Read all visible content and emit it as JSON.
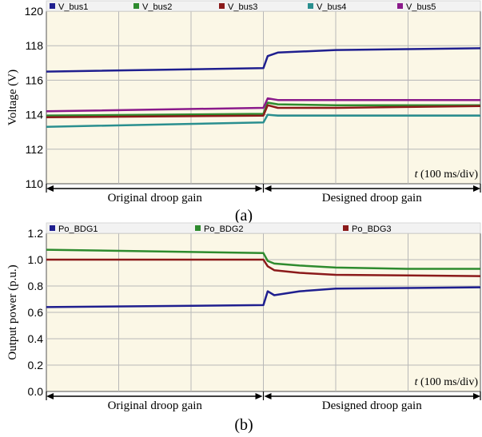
{
  "chart_data": [
    {
      "type": "line",
      "panel_label": "(a)",
      "ylabel": "Voltage (V)",
      "ylim": [
        110,
        120
      ],
      "yticks": [
        "110",
        "112",
        "114",
        "116",
        "118",
        "120"
      ],
      "x_note_prefix": "t",
      "x_note_suffix": " (100 ms/div)",
      "xlim": [
        0,
        6
      ],
      "switch_x": 3,
      "regions": [
        "Original droop gain",
        "Designed droop gain"
      ],
      "background": "#fbf7e6",
      "series": [
        {
          "name": "V_bus1",
          "color": "#1f1f8f",
          "x": [
            0,
            3.0,
            3.06,
            3.2,
            4.0,
            5.0,
            6.0
          ],
          "y": [
            116.5,
            116.7,
            117.4,
            117.6,
            117.75,
            117.8,
            117.85
          ]
        },
        {
          "name": "V_bus2",
          "color": "#2e8b2e",
          "x": [
            0,
            3.0,
            3.06,
            3.2,
            4.0,
            5.0,
            6.0
          ],
          "y": [
            113.95,
            114.05,
            114.7,
            114.6,
            114.55,
            114.55,
            114.55
          ]
        },
        {
          "name": "V_bus3",
          "color": "#8b1a1a",
          "x": [
            0,
            3.0,
            3.06,
            3.2,
            4.0,
            5.0,
            6.0
          ],
          "y": [
            113.85,
            113.95,
            114.55,
            114.4,
            114.4,
            114.45,
            114.5
          ]
        },
        {
          "name": "V_bus4",
          "color": "#2a8f8f",
          "x": [
            0,
            3.0,
            3.06,
            3.2,
            4.0,
            5.0,
            6.0
          ],
          "y": [
            113.3,
            113.55,
            114.0,
            113.95,
            113.95,
            113.95,
            113.95
          ]
        },
        {
          "name": "V_bus5",
          "color": "#8b1a8b",
          "x": [
            0,
            3.0,
            3.06,
            3.2,
            4.0,
            5.0,
            6.0
          ],
          "y": [
            114.2,
            114.4,
            114.95,
            114.85,
            114.85,
            114.85,
            114.85
          ]
        }
      ]
    },
    {
      "type": "line",
      "panel_label": "(b)",
      "ylabel": "Output power (p.u.)",
      "ylim": [
        0.0,
        1.2
      ],
      "yticks": [
        "0.0",
        "0.2",
        "0.4",
        "0.6",
        "0.8",
        "1.0",
        "1.2"
      ],
      "x_note_prefix": "t",
      "x_note_suffix": " (100 ms/div)",
      "xlim": [
        0,
        6
      ],
      "switch_x": 3,
      "regions": [
        "Original droop gain",
        "Designed droop gain"
      ],
      "background": "#fbf7e6",
      "series": [
        {
          "name": "Po_BDG1",
          "color": "#1f1f8f",
          "x": [
            0,
            3.0,
            3.06,
            3.15,
            3.5,
            4.0,
            5.0,
            6.0
          ],
          "y": [
            0.64,
            0.655,
            0.76,
            0.73,
            0.76,
            0.78,
            0.785,
            0.79
          ]
        },
        {
          "name": "Po_BDG2",
          "color": "#2e8b2e",
          "x": [
            0,
            3.0,
            3.06,
            3.15,
            3.5,
            4.0,
            5.0,
            6.0
          ],
          "y": [
            1.075,
            1.05,
            0.99,
            0.97,
            0.955,
            0.94,
            0.93,
            0.93
          ]
        },
        {
          "name": "Po_BDG3",
          "color": "#8b1a1a",
          "x": [
            0,
            3.0,
            3.06,
            3.15,
            3.5,
            4.0,
            5.0,
            6.0
          ],
          "y": [
            1.0,
            1.0,
            0.95,
            0.92,
            0.9,
            0.885,
            0.88,
            0.875
          ]
        }
      ]
    }
  ]
}
